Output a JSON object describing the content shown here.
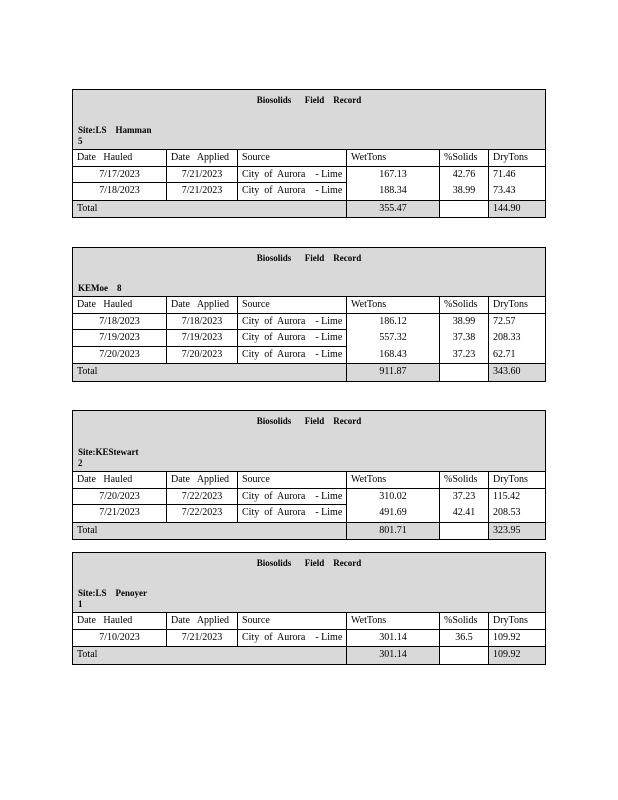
{
  "columns": [
    "Date   Hauled",
    "Date   Applied",
    "Source",
    "WetTons",
    "%Solids",
    "DryTons"
  ],
  "total_label": "Total",
  "records": [
    {
      "title": "Biosolids      Field    Record",
      "site": "Site:LS    Hamman\n5",
      "rows": [
        [
          "7/17/2023",
          "7/21/2023",
          "City  of  Aurora    - Lime",
          "167.13",
          "42.76",
          "71.46"
        ],
        [
          "7/18/2023",
          "7/21/2023",
          "City  of  Aurora    - Lime",
          "188.34",
          "38.99",
          "73.43"
        ]
      ],
      "total_wet": "355.47",
      "total_solids": "",
      "total_dry": "144.90"
    },
    {
      "title": "Biosolids      Field    Record",
      "site": "KEMoe    8",
      "rows": [
        [
          "7/18/2023",
          "7/18/2023",
          "City  of  Aurora    - Lime",
          "186.12",
          "38.99",
          "72.57"
        ],
        [
          "7/19/2023",
          "7/19/2023",
          "City  of  Aurora    - Lime",
          "557.32",
          "37.38",
          "208.33"
        ],
        [
          "7/20/2023",
          "7/20/2023",
          "City  of  Aurora    - Lime",
          "168.43",
          "37.23",
          "62.71"
        ]
      ],
      "total_wet": "911.87",
      "total_solids": "",
      "total_dry": "343.60"
    },
    {
      "title": "Biosolids      Field    Record",
      "site": "Site:KEStewart\n2",
      "rows": [
        [
          "7/20/2023",
          "7/22/2023",
          "City  of  Aurora    - Lime",
          "310.02",
          "37.23",
          "115.42"
        ],
        [
          "7/21/2023",
          "7/22/2023",
          "City  of  Aurora    - Lime",
          "491.69",
          "42.41",
          "208.53"
        ]
      ],
      "total_wet": "801.71",
      "total_solids": "",
      "total_dry": "323.95"
    },
    {
      "title": "Biosolids      Field    Record",
      "site": "Site:LS    Penoyer\n1",
      "rows": [
        [
          "7/10/2023",
          "7/21/2023",
          "City  of  Aurora    - Lime",
          "301.14",
          "36.5",
          "109.92"
        ]
      ],
      "total_wet": "301.14",
      "total_solids": "",
      "total_dry": "109.92"
    }
  ]
}
